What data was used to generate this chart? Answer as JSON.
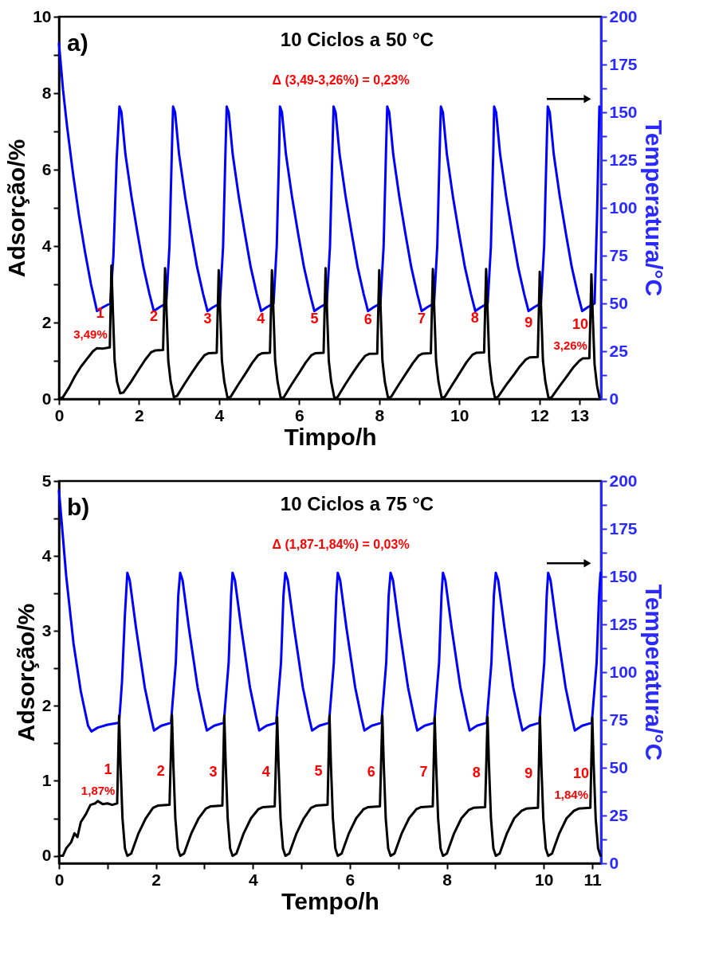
{
  "chart_data": [
    {
      "type": "line",
      "title": "10 Ciclos a 50 °C",
      "xlabel": "Timpo/h",
      "ylabel": "Adsorção/%",
      "y2label": "Temperatura/°C",
      "xlim": [
        0,
        13.54
      ],
      "xticks": [
        0,
        {
          "value": 1,
          "label": null
        },
        2,
        {
          "value": 3,
          "label": null
        },
        4,
        {
          "value": 5,
          "label": null
        },
        6,
        {
          "value": 7,
          "label": null
        },
        8,
        {
          "value": 9,
          "label": null
        },
        10,
        {
          "value": 11,
          "label": null
        },
        12,
        13
      ],
      "ylim": [
        0,
        10
      ],
      "yticks": [
        0,
        {
          "value": 1,
          "label": null
        },
        2,
        {
          "value": 3,
          "label": null
        },
        4,
        {
          "value": 5,
          "label": null
        },
        6,
        {
          "value": 7,
          "label": null
        },
        8,
        {
          "value": 9,
          "label": null
        },
        10
      ],
      "y2lim": [
        0,
        200
      ],
      "y2ticks": [
        0,
        {
          "value": 12.5,
          "label": null
        },
        25,
        {
          "value": 37.5,
          "label": null
        },
        50,
        {
          "value": 62.5,
          "label": null
        },
        75,
        {
          "value": 87.5,
          "label": null
        },
        100,
        {
          "value": 112.5,
          "label": null
        },
        125,
        {
          "value": 137.5,
          "label": null
        },
        150,
        {
          "value": 162.5,
          "label": null
        },
        175,
        {
          "value": 187.5,
          "label": null
        },
        200
      ],
      "series": [
        {
          "color": "#000000",
          "x": [
            0,
            0.1,
            0.25,
            0.4,
            0.55,
            0.7,
            0.85,
            0.95,
            1.1,
            1.27,
            1.31,
            1.35,
            1.39,
            1.45,
            1.53,
            1.61,
            1.8,
            2.0,
            2.15,
            2.3,
            2.4,
            2.6,
            2.65,
            2.69,
            2.73,
            2.79,
            2.87,
            2.95,
            3.14,
            3.34,
            3.49,
            3.64,
            3.74,
            3.94,
            3.99,
            4.03,
            4.07,
            4.13,
            4.21,
            4.29,
            4.48,
            4.68,
            4.83,
            4.98,
            5.08,
            5.27,
            5.32,
            5.36,
            5.4,
            5.46,
            5.54,
            5.62,
            5.81,
            6.01,
            6.16,
            6.31,
            6.41,
            6.61,
            6.66,
            6.7,
            6.74,
            6.8,
            6.88,
            6.96,
            7.15,
            7.35,
            7.5,
            7.65,
            7.75,
            7.95,
            8.0,
            8.04,
            8.08,
            8.14,
            8.22,
            8.3,
            8.49,
            8.69,
            8.84,
            8.99,
            9.09,
            9.29,
            9.34,
            9.38,
            9.42,
            9.48,
            9.56,
            9.64,
            9.83,
            10.03,
            10.18,
            10.33,
            10.43,
            10.62,
            10.67,
            10.71,
            10.75,
            10.81,
            10.89,
            10.97,
            11.16,
            11.36,
            11.51,
            11.66,
            11.76,
            11.96,
            12.01,
            12.05,
            12.09,
            12.15,
            12.23,
            12.31,
            12.5,
            12.7,
            12.85,
            13.0,
            13.08,
            13.25,
            13.3,
            13.34,
            13.38,
            13.44,
            13.5
          ],
          "values": [
            0,
            0.05,
            0.3,
            0.6,
            0.85,
            1.05,
            1.25,
            1.33,
            1.32,
            1.35,
            3.49,
            2.2,
            1.0,
            0.45,
            0.15,
            0.17,
            0.45,
            0.78,
            1.02,
            1.22,
            1.27,
            1.28,
            3.42,
            2.2,
            1.0,
            0.45,
            0.05,
            0.08,
            0.4,
            0.72,
            0.95,
            1.15,
            1.2,
            1.21,
            3.37,
            2.2,
            1.0,
            0.45,
            0.03,
            0.06,
            0.38,
            0.7,
            0.95,
            1.15,
            1.2,
            1.21,
            3.37,
            2.2,
            1.0,
            0.45,
            0.02,
            0.05,
            0.38,
            0.7,
            0.95,
            1.15,
            1.2,
            1.21,
            3.42,
            2.2,
            1.0,
            0.45,
            0.02,
            0.05,
            0.38,
            0.7,
            0.93,
            1.13,
            1.18,
            1.19,
            3.37,
            2.2,
            1.0,
            0.45,
            0.03,
            0.06,
            0.38,
            0.7,
            0.94,
            1.14,
            1.19,
            1.2,
            3.4,
            2.2,
            1.0,
            0.45,
            0.03,
            0.06,
            0.38,
            0.71,
            0.96,
            1.16,
            1.21,
            1.22,
            3.4,
            2.2,
            1.0,
            0.45,
            0.03,
            0.06,
            0.35,
            0.63,
            0.85,
            1.03,
            1.09,
            1.1,
            3.33,
            2.2,
            1.0,
            0.45,
            0.02,
            0.05,
            0.33,
            0.61,
            0.83,
            1.0,
            1.06,
            1.07,
            3.26,
            2.0,
            0.9,
            0.35,
            0.05
          ]
        },
        {
          "color": "#0000ff",
          "axis": "y2",
          "x": [
            0,
            0.1,
            0.2,
            0.35,
            0.5,
            0.65,
            0.8,
            0.95,
            1.1,
            1.28,
            1.36,
            1.44,
            1.51,
            1.56,
            1.66,
            1.81,
            1.96,
            2.11,
            2.26,
            2.37,
            2.51,
            2.68,
            2.76,
            2.82,
            2.85,
            2.9,
            3.0,
            3.15,
            3.3,
            3.45,
            3.6,
            3.71,
            3.85,
            4.02,
            4.1,
            4.16,
            4.19,
            4.24,
            4.34,
            4.49,
            4.64,
            4.79,
            4.94,
            5.05,
            5.19,
            5.36,
            5.44,
            5.5,
            5.52,
            5.57,
            5.67,
            5.82,
            5.97,
            6.12,
            6.27,
            6.38,
            6.52,
            6.69,
            6.77,
            6.83,
            6.86,
            6.91,
            7.01,
            7.16,
            7.31,
            7.46,
            7.61,
            7.72,
            7.86,
            8.03,
            8.11,
            8.17,
            8.2,
            8.25,
            8.35,
            8.5,
            8.65,
            8.8,
            8.95,
            9.06,
            9.2,
            9.37,
            9.45,
            9.51,
            9.54,
            9.59,
            9.69,
            9.84,
            9.99,
            10.14,
            10.29,
            10.4,
            10.54,
            10.71,
            10.79,
            10.85,
            10.87,
            10.92,
            11.02,
            11.17,
            11.32,
            11.47,
            11.62,
            11.73,
            11.87,
            12.04,
            12.12,
            12.18,
            12.21,
            12.26,
            12.36,
            12.51,
            12.66,
            12.81,
            12.96,
            13.07,
            13.21,
            13.38,
            13.44,
            13.5
          ],
          "values": [
            186,
            162,
            143,
            118,
            96,
            77,
            60,
            46,
            48,
            50,
            75,
            125,
            153,
            150,
            128,
            106,
            87,
            69,
            55,
            46,
            48,
            50,
            80,
            130,
            153,
            150,
            128,
            106,
            87,
            69,
            55,
            46,
            48,
            50,
            80,
            130,
            153,
            150,
            128,
            106,
            87,
            69,
            55,
            46,
            48,
            50,
            80,
            130,
            153,
            150,
            128,
            106,
            87,
            69,
            55,
            46,
            48,
            50,
            80,
            130,
            153,
            150,
            128,
            106,
            87,
            69,
            55,
            46,
            48,
            50,
            80,
            130,
            153,
            150,
            128,
            106,
            87,
            69,
            55,
            46,
            48,
            50,
            80,
            130,
            153,
            150,
            128,
            106,
            87,
            69,
            55,
            46,
            48,
            50,
            80,
            130,
            153,
            150,
            128,
            106,
            87,
            69,
            55,
            46,
            48,
            50,
            80,
            130,
            153,
            150,
            128,
            106,
            87,
            69,
            55,
            46,
            48,
            50,
            95,
            153
          ]
        }
      ],
      "annotations": [
        "a)",
        "Δ (3,49-3,26%) = 0,23%",
        "1",
        "2",
        "3",
        "4",
        "5",
        "6",
        "7",
        "8",
        "9",
        "10",
        "3,49%",
        "3,26%"
      ]
    },
    {
      "type": "line",
      "title": "10 Ciclos a 75 °C",
      "xlabel": "Tempo/h",
      "ylabel": "Adsorção/%",
      "y2label": "Temperatura/°C",
      "xlim": [
        0,
        11.18
      ],
      "xticks": [
        0,
        {
          "value": 1,
          "label": null
        },
        2,
        {
          "value": 3,
          "label": null
        },
        4,
        {
          "value": 5,
          "label": null
        },
        6,
        {
          "value": 7,
          "label": null
        },
        8,
        {
          "value": 9,
          "label": null
        },
        10,
        11
      ],
      "ylim": [
        -0.1,
        5
      ],
      "yticks": [
        0,
        {
          "value": 0.5,
          "label": null
        },
        1,
        {
          "value": 1.5,
          "label": null
        },
        2,
        {
          "value": 2.5,
          "label": null
        },
        3,
        {
          "value": 3.5,
          "label": null
        },
        4,
        {
          "value": 4.5,
          "label": null
        },
        5
      ],
      "y2lim": [
        0,
        200
      ],
      "y2ticks": [
        0,
        {
          "value": 12.5,
          "label": null
        },
        25,
        {
          "value": 37.5,
          "label": null
        },
        50,
        {
          "value": 62.5,
          "label": null
        },
        75,
        {
          "value": 87.5,
          "label": null
        },
        100,
        {
          "value": 112.5,
          "label": null
        },
        125,
        {
          "value": 137.5,
          "label": null
        },
        150,
        {
          "value": 162.5,
          "label": null
        },
        175,
        {
          "value": 187.5,
          "label": null
        },
        200
      ],
      "series": [
        {
          "color": "#000000",
          "x": [
            0,
            0.08,
            0.15,
            0.25,
            0.32,
            0.38,
            0.45,
            0.55,
            0.65,
            0.75,
            0.8,
            0.9,
            1.0,
            1.1,
            1.2,
            1.24,
            1.27,
            1.31,
            1.36,
            1.41,
            1.49,
            1.64,
            1.79,
            1.94,
            2.04,
            2.28,
            2.33,
            2.36,
            2.4,
            2.45,
            2.5,
            2.58,
            2.73,
            2.88,
            3.03,
            3.13,
            3.37,
            3.41,
            3.44,
            3.48,
            3.53,
            3.58,
            3.66,
            3.81,
            3.96,
            4.11,
            4.21,
            4.45,
            4.5,
            4.53,
            4.57,
            4.62,
            4.67,
            4.75,
            4.9,
            5.05,
            5.2,
            5.3,
            5.54,
            5.58,
            5.61,
            5.65,
            5.7,
            5.75,
            5.83,
            5.98,
            6.13,
            6.28,
            6.38,
            6.62,
            6.67,
            6.7,
            6.74,
            6.79,
            6.84,
            6.92,
            7.07,
            7.22,
            7.37,
            7.47,
            7.71,
            7.75,
            7.78,
            7.82,
            7.87,
            7.92,
            8.0,
            8.15,
            8.3,
            8.45,
            8.55,
            8.79,
            8.84,
            8.87,
            8.91,
            8.96,
            9.01,
            9.09,
            9.24,
            9.39,
            9.54,
            9.64,
            9.88,
            9.92,
            9.95,
            9.99,
            10.04,
            10.09,
            10.17,
            10.32,
            10.47,
            10.62,
            10.72,
            10.96,
            11.0,
            11.03,
            11.07,
            11.12,
            11.17
          ],
          "values": [
            0,
            0,
            0.1,
            0.18,
            0.3,
            0.25,
            0.45,
            0.55,
            0.68,
            0.7,
            0.73,
            0.69,
            0.7,
            0.68,
            0.7,
            1.87,
            1.2,
            0.5,
            0.1,
            0,
            0.03,
            0.3,
            0.5,
            0.64,
            0.67,
            0.68,
            1.88,
            1.2,
            0.5,
            0.1,
            0,
            0.03,
            0.3,
            0.5,
            0.63,
            0.66,
            0.67,
            1.87,
            1.2,
            0.5,
            0.1,
            0,
            0.03,
            0.3,
            0.5,
            0.62,
            0.65,
            0.66,
            1.85,
            1.2,
            0.5,
            0.1,
            0,
            0.03,
            0.3,
            0.5,
            0.64,
            0.67,
            0.68,
            1.87,
            1.2,
            0.5,
            0.1,
            0,
            0.03,
            0.3,
            0.5,
            0.62,
            0.65,
            0.66,
            1.87,
            1.2,
            0.5,
            0.1,
            0,
            0.03,
            0.3,
            0.5,
            0.62,
            0.65,
            0.66,
            1.85,
            1.2,
            0.5,
            0.1,
            0,
            0.03,
            0.3,
            0.5,
            0.61,
            0.64,
            0.65,
            1.85,
            1.2,
            0.5,
            0.1,
            0,
            0.03,
            0.3,
            0.5,
            0.6,
            0.63,
            0.64,
            1.85,
            1.2,
            0.5,
            0.1,
            0,
            0.03,
            0.3,
            0.5,
            0.6,
            0.63,
            0.64,
            1.84,
            1.2,
            0.5,
            0.1,
            0
          ]
        },
        {
          "color": "#0000ff",
          "axis": "y2",
          "x": [
            0,
            0.05,
            0.15,
            0.3,
            0.45,
            0.6,
            0.67,
            0.8,
            1.0,
            1.24,
            1.3,
            1.36,
            1.41,
            1.46,
            1.59,
            1.77,
            1.9,
            1.96,
            2.11,
            2.31,
            2.41,
            2.46,
            2.5,
            2.55,
            2.68,
            2.86,
            2.99,
            3.05,
            3.2,
            3.4,
            3.5,
            3.55,
            3.58,
            3.63,
            3.76,
            3.94,
            4.07,
            4.13,
            4.28,
            4.48,
            4.58,
            4.63,
            4.67,
            4.72,
            4.85,
            5.03,
            5.16,
            5.22,
            5.37,
            5.57,
            5.67,
            5.72,
            5.75,
            5.8,
            5.93,
            6.11,
            6.24,
            6.3,
            6.45,
            6.65,
            6.75,
            6.8,
            6.84,
            6.89,
            7.02,
            7.2,
            7.33,
            7.39,
            7.54,
            7.74,
            7.84,
            7.89,
            7.92,
            7.97,
            8.1,
            8.28,
            8.41,
            8.47,
            8.62,
            8.82,
            8.92,
            8.97,
            9.01,
            9.06,
            9.19,
            9.37,
            9.5,
            9.56,
            9.71,
            9.91,
            10.01,
            10.06,
            10.09,
            10.14,
            10.27,
            10.45,
            10.58,
            10.64,
            10.79,
            10.99,
            11.09,
            11.14,
            11.17
          ],
          "values": [
            195,
            180,
            150,
            115,
            90,
            72,
            69,
            71,
            72.5,
            73.5,
            95,
            130,
            152,
            148,
            123,
            92,
            76,
            69.5,
            72,
            73.5,
            105,
            140,
            152,
            148,
            123,
            92,
            76,
            69.5,
            72,
            73.5,
            105,
            140,
            152,
            148,
            123,
            92,
            76,
            69.5,
            72,
            73.5,
            105,
            140,
            152,
            148,
            123,
            92,
            76,
            69.5,
            72,
            73.5,
            105,
            140,
            152,
            148,
            123,
            92,
            76,
            69.5,
            72,
            73.5,
            105,
            140,
            152,
            148,
            123,
            92,
            76,
            69.5,
            72,
            73.5,
            105,
            140,
            152,
            148,
            123,
            92,
            76,
            69.5,
            72,
            73.5,
            105,
            140,
            152,
            148,
            123,
            92,
            76,
            69.5,
            72,
            73.5,
            105,
            140,
            152,
            148,
            123,
            92,
            76,
            69.5,
            72,
            73.5,
            105,
            140,
            152
          ]
        }
      ],
      "annotations": [
        "b)",
        "Δ (1,87-1,84%) = 0,03%",
        "1",
        "2",
        "3",
        "4",
        "5",
        "6",
        "7",
        "8",
        "9",
        "10",
        "1,87%",
        "1,84%"
      ]
    }
  ]
}
